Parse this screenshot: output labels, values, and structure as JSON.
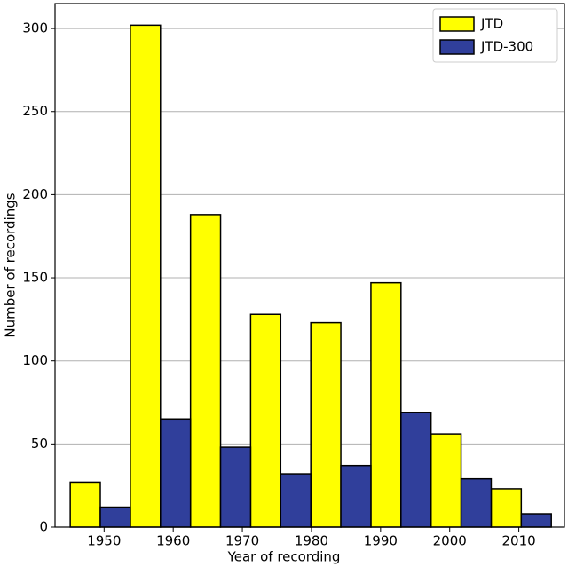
{
  "chart_data": {
    "type": "histogram",
    "xlabel": "Year of recording",
    "ylabel": "Number of recordings",
    "bins": [
      1945.1,
      1953.8,
      1962.5,
      1971.2,
      1979.9,
      1988.6,
      1997.3,
      2006.0,
      2014.7
    ],
    "series": [
      {
        "name": "JTD",
        "color": "#ffff00",
        "values": [
          27,
          302,
          188,
          128,
          123,
          147,
          56,
          23
        ]
      },
      {
        "name": "JTD-300",
        "color": "#303f9b",
        "values": [
          12,
          65,
          48,
          32,
          37,
          69,
          29,
          8
        ]
      }
    ],
    "xlim": [
      1942.9,
      2016.6
    ],
    "xticks": [
      1950,
      1960,
      1970,
      1980,
      1990,
      2000,
      2010
    ],
    "ylim": [
      0,
      315
    ],
    "yticks": [
      0,
      50,
      100,
      150,
      200,
      250,
      300
    ],
    "grid": true,
    "legend": "upper right"
  }
}
